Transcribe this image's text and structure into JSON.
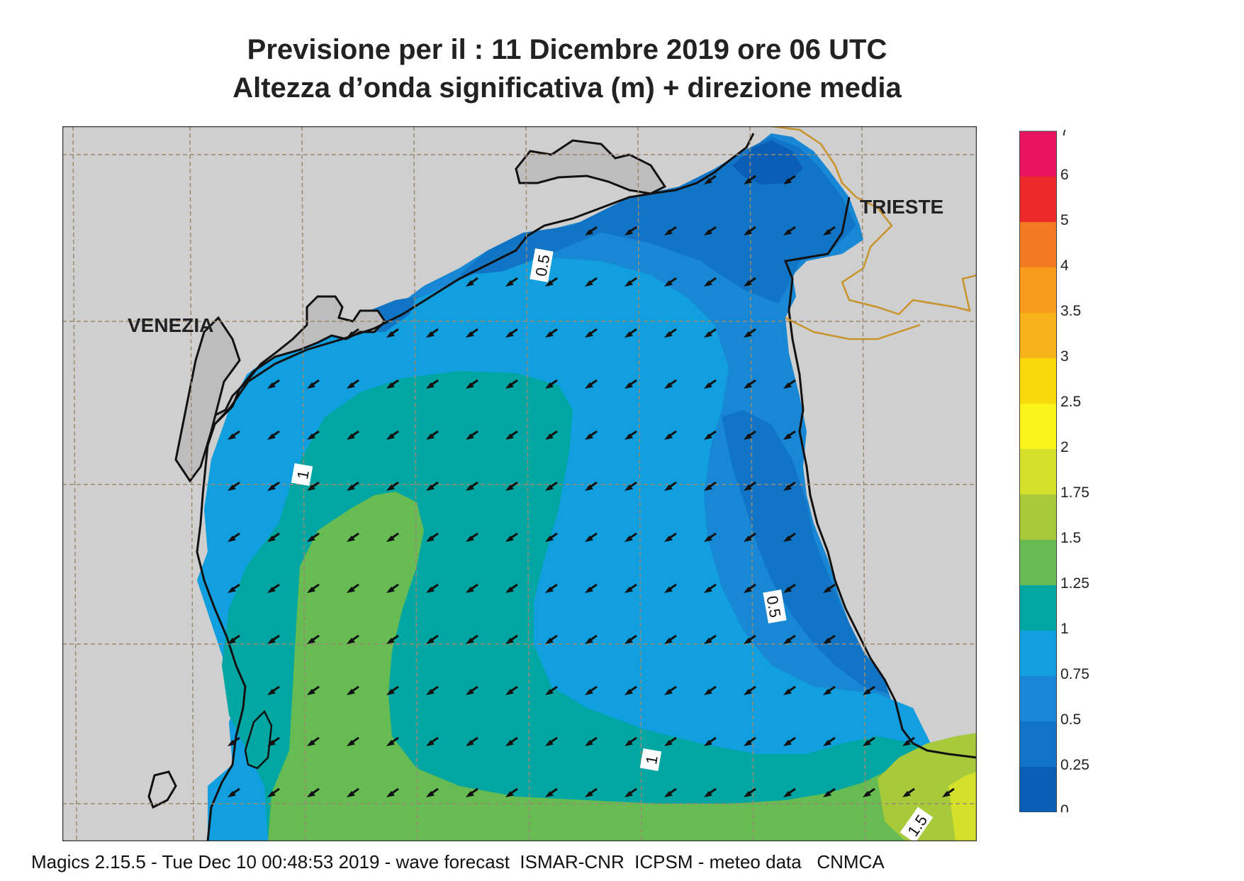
{
  "header": {
    "title_line1": "Previsione per il  :  11 Dicembre  2019   ore 06 UTC",
    "title_line2": "Altezza d’onda significativa (m) + direzione media"
  },
  "map": {
    "cities": [
      "VENEZIA",
      "TRIESTE"
    ],
    "contour_labels": [
      "0.5",
      "1",
      "0.5",
      "1",
      "1.5"
    ],
    "arrow_direction": "south-west",
    "colors": {
      "land": "#cfcfcf",
      "coast": "#111111",
      "border": "#c8932a",
      "grid": "#9a8a70"
    }
  },
  "legend": {
    "bins": [
      {
        "label": "0",
        "color": "#0a5fb4"
      },
      {
        "label": "0.25",
        "color": "#1274c4"
      },
      {
        "label": "0.5",
        "color": "#1888d4"
      },
      {
        "label": "0.75",
        "color": "#129fe0"
      },
      {
        "label": "1",
        "color": "#00a6a2"
      },
      {
        "label": "1.25",
        "color": "#66bb52"
      },
      {
        "label": "1.5",
        "color": "#a6ca3a"
      },
      {
        "label": "1.75",
        "color": "#d4e02a"
      },
      {
        "label": "2",
        "color": "#fbf41a"
      },
      {
        "label": "2.5",
        "color": "#fbd80a"
      },
      {
        "label": "3",
        "color": "#f9b31a"
      },
      {
        "label": "3.5",
        "color": "#f79c1c"
      },
      {
        "label": "4",
        "color": "#f47a22"
      },
      {
        "label": "5",
        "color": "#ec2a2a"
      },
      {
        "label": "6",
        "color": "#e8155e"
      }
    ],
    "top_label": "7"
  },
  "footer": {
    "text": "Magics 2.15.5 - Tue Dec 10 00:48:53 2019 - wave forecast  ISMAR-CNR  ICPSM - meteo data   CNMCA"
  }
}
